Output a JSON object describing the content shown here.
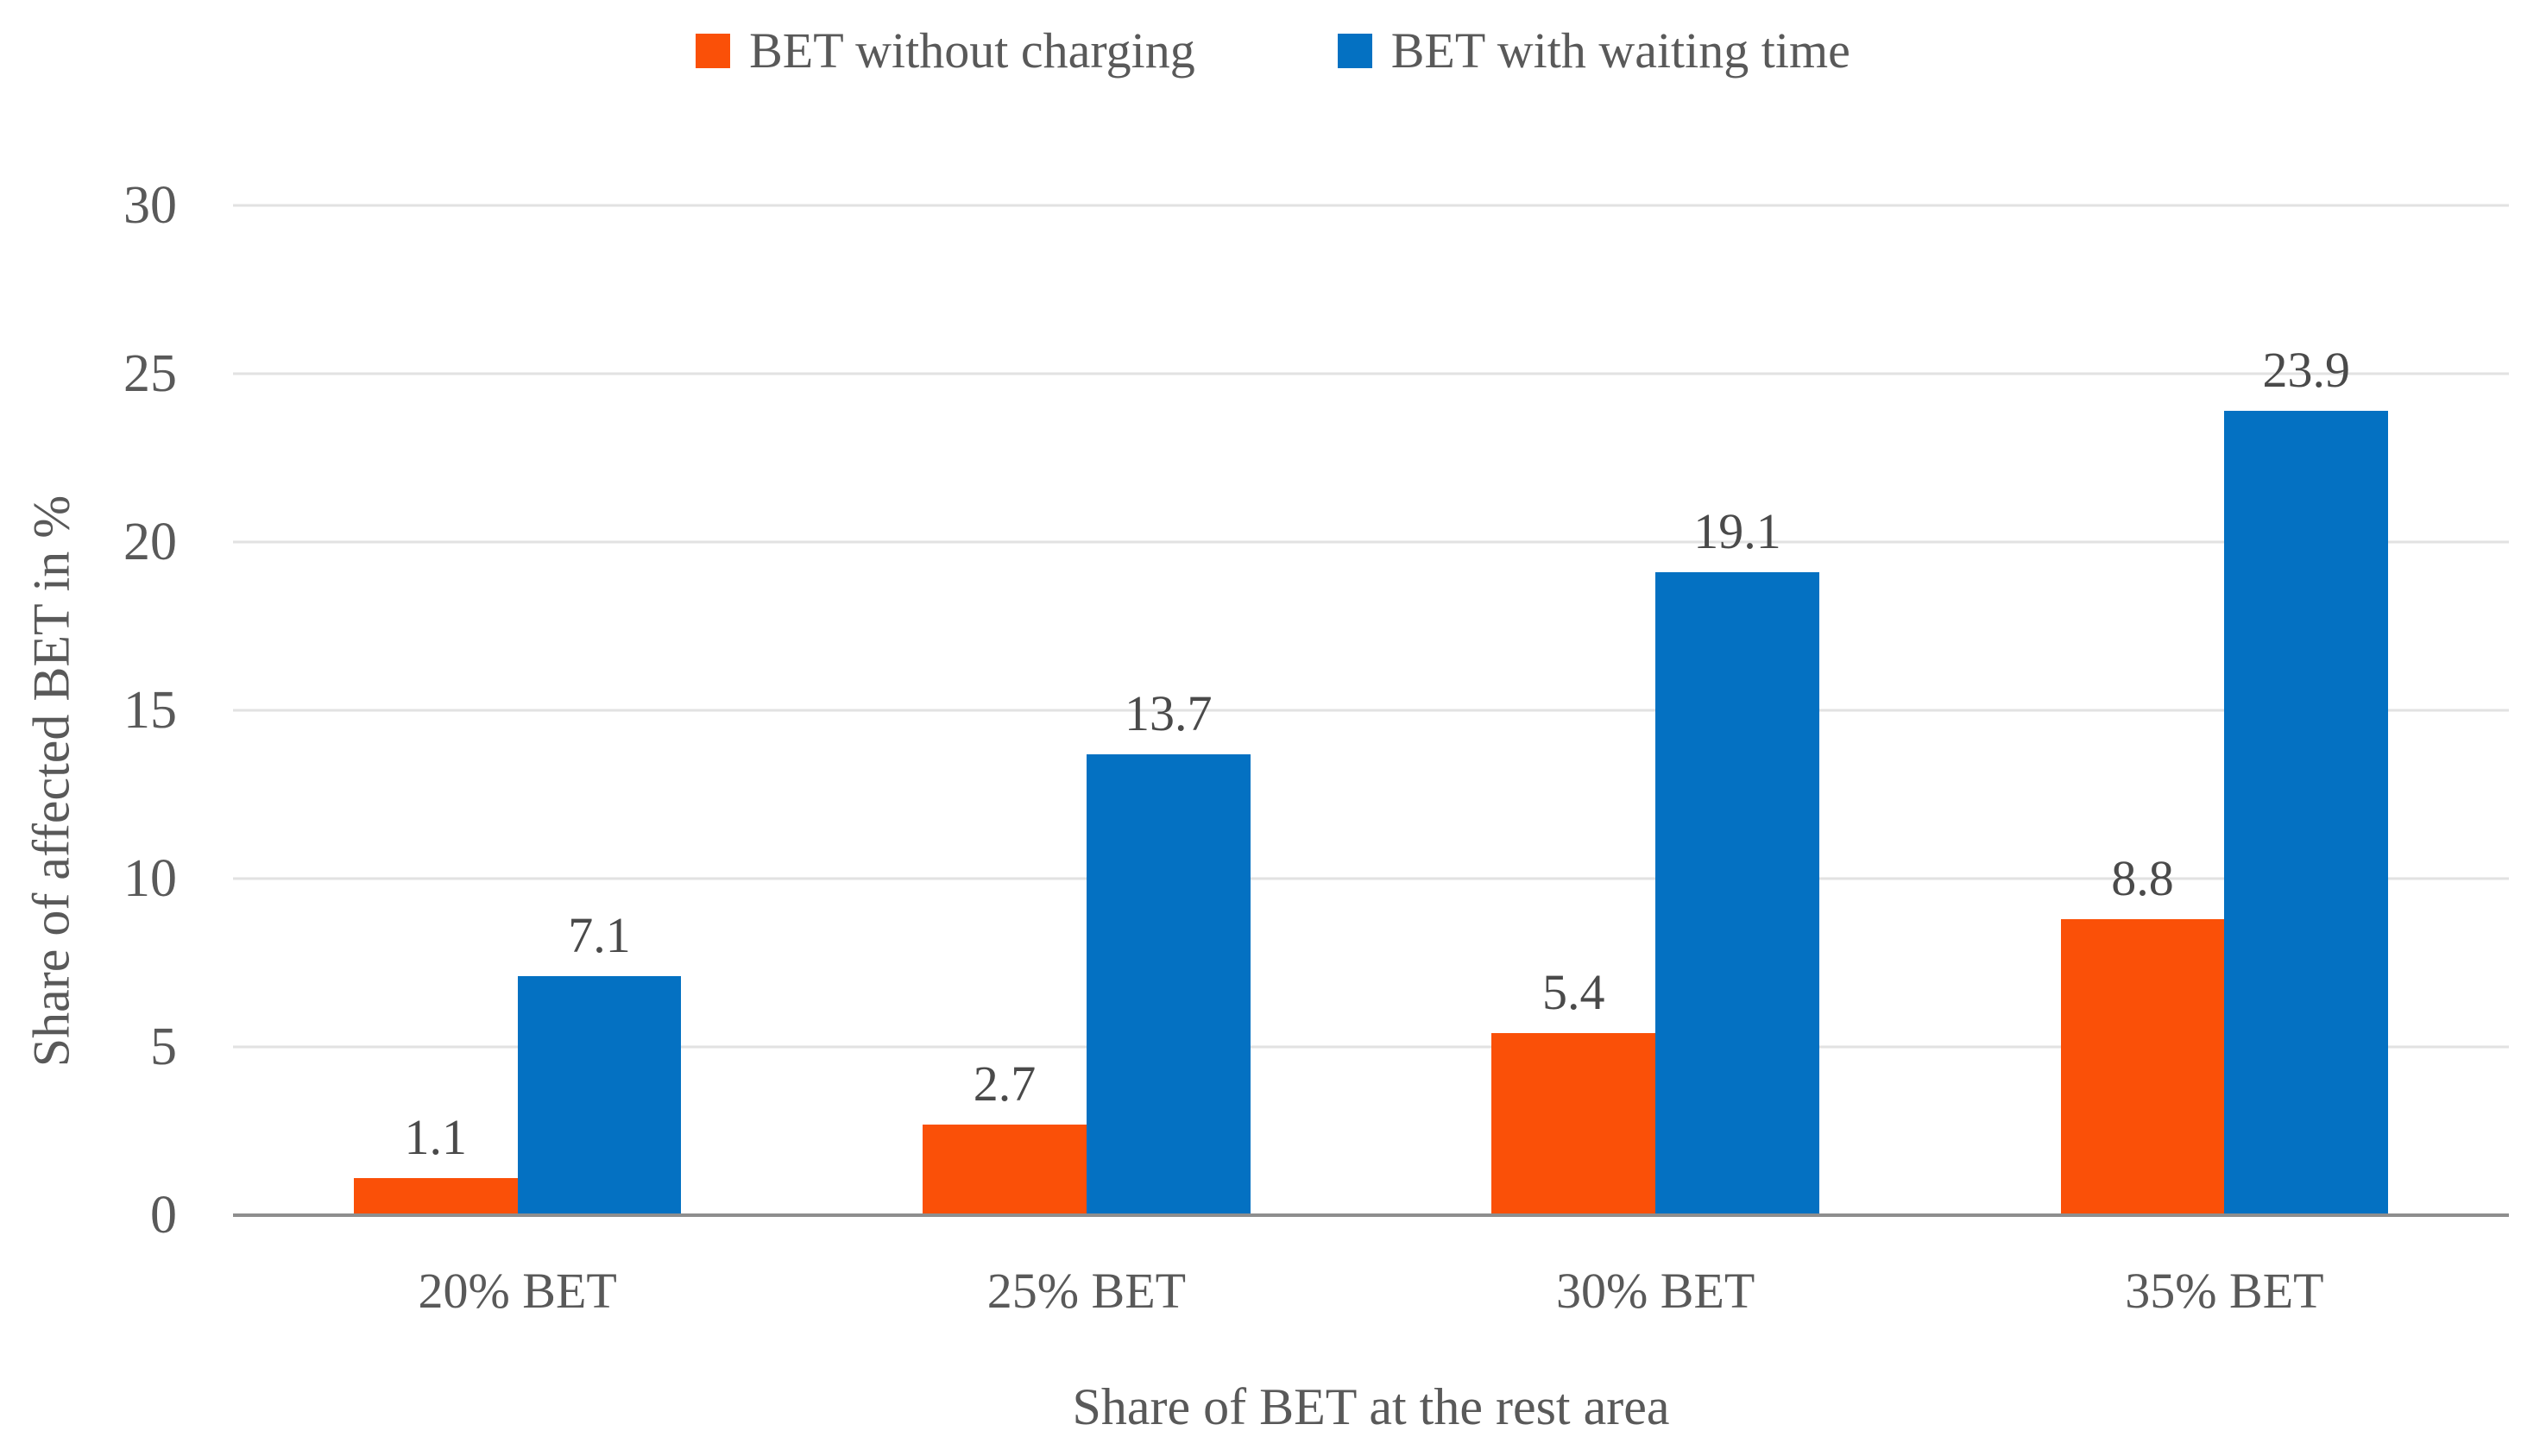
{
  "chart_data": {
    "type": "bar",
    "title": "",
    "categories": [
      "20% BET",
      "25% BET",
      "30% BET",
      "35% BET"
    ],
    "series": [
      {
        "name": "BET without charging",
        "color": "#fa5008",
        "values": [
          1.1,
          2.7,
          5.4,
          8.8
        ]
      },
      {
        "name": "BET with waiting time",
        "color": "#0471c2",
        "values": [
          7.1,
          13.7,
          19.1,
          23.9
        ]
      }
    ],
    "xlabel": "Share of BET at the rest area",
    "ylabel": "Share of affected BET in %",
    "ylim": [
      0,
      30
    ],
    "yticks": [
      0,
      5,
      10,
      15,
      20,
      25,
      30
    ],
    "grid": true,
    "legend_position": "top",
    "value_labels": true,
    "value_label_decimals": 1,
    "axis_text_color": "#595959",
    "value_label_color": "#4a4a4a",
    "gridline_color": "#e2e2e2",
    "axis_line_color": "#8e8e8e",
    "background_color": "#ffffff"
  }
}
